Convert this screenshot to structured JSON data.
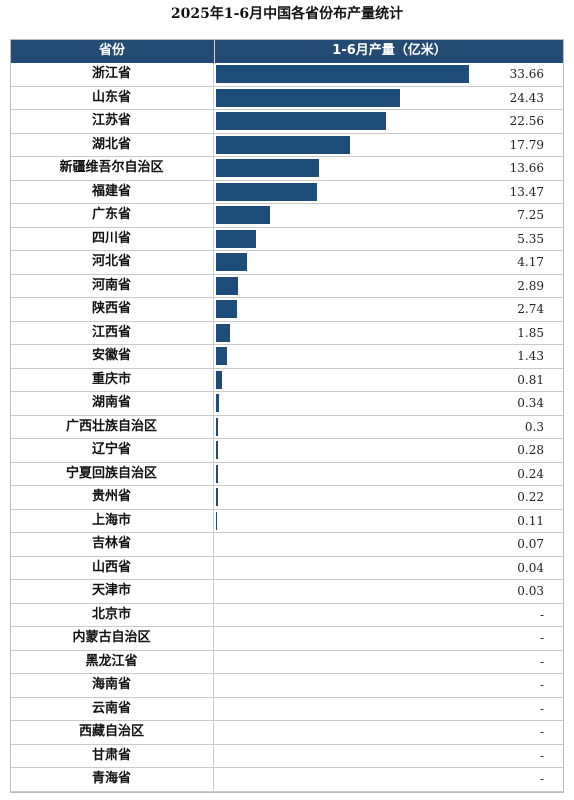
{
  "title": "2025年1-6月中国各省份布产量统计",
  "header": {
    "col1": "省份",
    "col2": "1-6月产量（亿米）"
  },
  "chart_data": {
    "type": "bar",
    "title": "2025年1-6月中国各省份布产量统计",
    "xlabel": "",
    "ylabel": "1-6月产量（亿米）",
    "categories": [
      "浙江省",
      "山东省",
      "江苏省",
      "湖北省",
      "新疆维吾尔自治区",
      "福建省",
      "广东省",
      "四川省",
      "河北省",
      "河南省",
      "陕西省",
      "江西省",
      "安徽省",
      "重庆市",
      "湖南省",
      "广西壮族自治区",
      "辽宁省",
      "宁夏回族自治区",
      "贵州省",
      "上海市",
      "吉林省",
      "山西省",
      "天津市",
      "北京市",
      "内蒙古自治区",
      "黑龙江省",
      "海南省",
      "云南省",
      "西藏自治区",
      "甘肃省",
      "青海省"
    ],
    "values": [
      33.66,
      24.43,
      22.56,
      17.79,
      13.66,
      13.47,
      7.25,
      5.35,
      4.17,
      2.89,
      2.74,
      1.85,
      1.43,
      0.81,
      0.34,
      0.3,
      0.28,
      0.24,
      0.22,
      0.11,
      0.07,
      0.04,
      0.03,
      null,
      null,
      null,
      null,
      null,
      null,
      null,
      null
    ],
    "labels": [
      "33.66",
      "24.43",
      "22.56",
      "17.79",
      "13.66",
      "13.47",
      "7.25",
      "5.35",
      "4.17",
      "2.89",
      "2.74",
      "1.85",
      "1.43",
      "0.81",
      "0.34",
      "0.3",
      "0.28",
      "0.24",
      "0.22",
      "0.11",
      "0.07",
      "0.04",
      "0.03",
      "-",
      "-",
      "-",
      "-",
      "-",
      "-",
      "-",
      "-"
    ],
    "bar_color": "#1f4d79",
    "header_color": "#244b74",
    "grid": true
  }
}
